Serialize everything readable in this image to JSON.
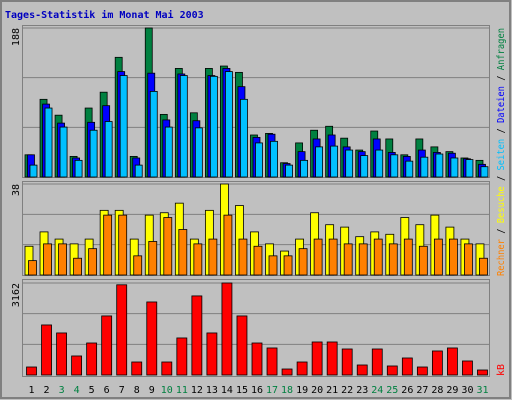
{
  "chart_data": [
    {
      "type": "bar",
      "title": "Tages-Statistik im Monat Mai 2003",
      "legend_separator": "/",
      "ylim": [
        0,
        188
      ],
      "yticks": [
        188
      ],
      "series": [
        {
          "name": "Anfragen",
          "color": "#008040",
          "values": [
            28,
            98,
            78,
            26,
            87,
            107,
            151,
            26,
            188,
            79,
            137,
            81,
            137,
            140,
            132,
            53,
            55,
            18,
            43,
            59,
            64,
            49,
            34,
            58,
            48,
            28,
            48,
            38,
            32,
            24,
            21
          ]
        },
        {
          "name": "Dateien",
          "color": "#0000ff",
          "values": [
            28,
            92,
            68,
            24,
            69,
            90,
            133,
            24,
            131,
            72,
            130,
            71,
            128,
            137,
            114,
            50,
            54,
            17,
            32,
            48,
            53,
            38,
            32,
            48,
            31,
            26,
            34,
            31,
            30,
            23,
            16
          ]
        },
        {
          "name": "Seiten",
          "color": "#00c0ff",
          "values": [
            15,
            87,
            63,
            21,
            59,
            70,
            128,
            15,
            108,
            63,
            128,
            62,
            127,
            133,
            98,
            43,
            45,
            15,
            21,
            38,
            39,
            34,
            27,
            34,
            28,
            20,
            25,
            29,
            24,
            22,
            13
          ]
        }
      ]
    },
    {
      "type": "bar",
      "ylim": [
        0,
        38
      ],
      "yticks": [
        38
      ],
      "series": [
        {
          "name": "Besuche",
          "color": "#ffff00",
          "values": [
            12,
            18,
            15,
            13,
            15,
            27,
            27,
            15,
            25,
            26,
            30,
            15,
            27,
            38,
            29,
            18,
            13,
            10,
            15,
            26,
            21,
            20,
            16,
            18,
            17,
            24,
            21,
            25,
            20,
            15,
            13
          ]
        },
        {
          "name": "Rechner",
          "color": "#ff8000",
          "values": [
            6,
            13,
            13,
            7,
            11,
            25,
            25,
            8,
            14,
            24,
            19,
            13,
            15,
            25,
            15,
            12,
            8,
            8,
            11,
            15,
            15,
            13,
            13,
            15,
            13,
            15,
            12,
            15,
            15,
            13,
            7
          ]
        }
      ]
    },
    {
      "type": "bar",
      "ylim": [
        0,
        3162
      ],
      "yticks": [
        3162
      ],
      "categories": [
        "1",
        "2",
        "3",
        "4",
        "5",
        "6",
        "7",
        "8",
        "9",
        "10",
        "11",
        "12",
        "13",
        "14",
        "15",
        "16",
        "17",
        "18",
        "19",
        "20",
        "21",
        "22",
        "23",
        "24",
        "25",
        "26",
        "27",
        "28",
        "29",
        "30",
        "31"
      ],
      "category_colors": [
        "#000000",
        "#000000",
        "#008040",
        "#008040",
        "#000000",
        "#000000",
        "#000000",
        "#000000",
        "#000000",
        "#008040",
        "#008040",
        "#000000",
        "#000000",
        "#000000",
        "#000000",
        "#000000",
        "#008040",
        "#008040",
        "#000000",
        "#000000",
        "#000000",
        "#000000",
        "#000000",
        "#008040",
        "#008040",
        "#000000",
        "#000000",
        "#000000",
        "#000000",
        "#000000",
        "#008040"
      ],
      "series": [
        {
          "name": "kB",
          "color": "#ff0000",
          "values": [
            275,
            1720,
            1445,
            654,
            1100,
            2030,
            3100,
            447,
            2510,
            447,
            1273,
            2718,
            1445,
            3162,
            2030,
            1100,
            929,
            206,
            447,
            1135,
            1135,
            894,
            344,
            894,
            310,
            585,
            275,
            826,
            929,
            482,
            172
          ]
        }
      ]
    }
  ]
}
